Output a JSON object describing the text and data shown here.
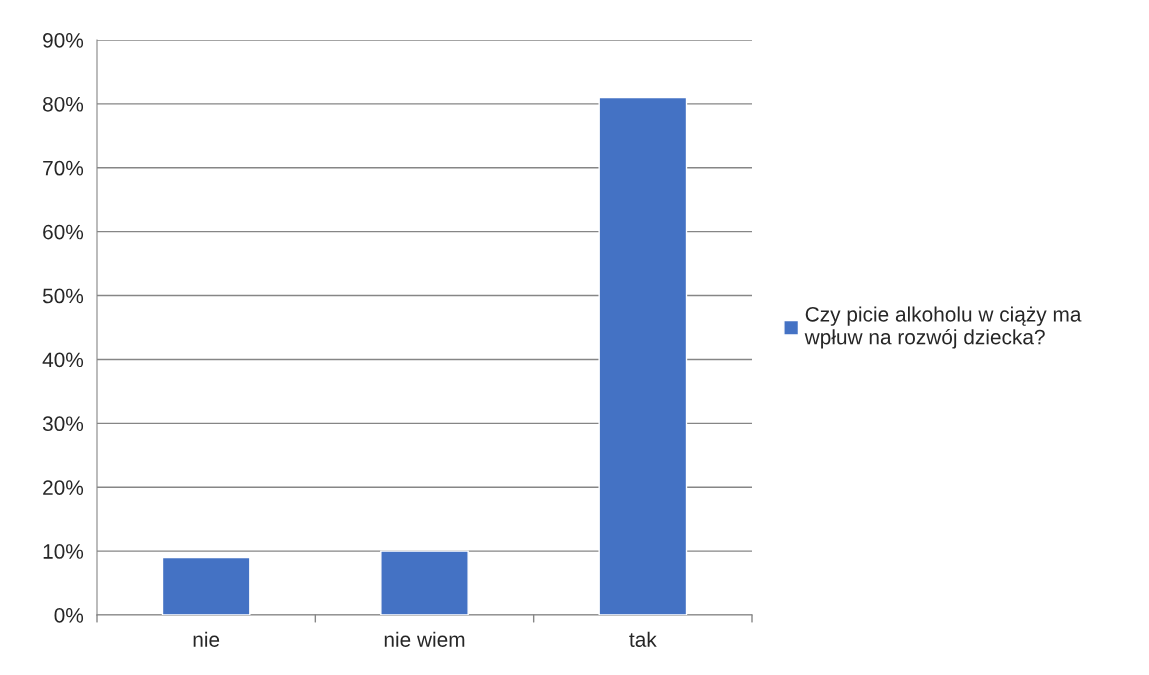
{
  "chart_data": {
    "type": "bar",
    "categories": [
      "nie",
      "nie wiem",
      "tak"
    ],
    "series": [
      {
        "name": "Czy picie alkoholu w ciąży ma wpłuw na rozwój dziecka?",
        "color": "#4472c4",
        "values": [
          9,
          10,
          81
        ]
      }
    ],
    "ylim": [
      0,
      90
    ],
    "yticks": [
      {
        "value": 0,
        "label": "0%"
      },
      {
        "value": 10,
        "label": "10%"
      },
      {
        "value": 20,
        "label": "20%"
      },
      {
        "value": 30,
        "label": "30%"
      },
      {
        "value": 40,
        "label": "40%"
      },
      {
        "value": 50,
        "label": "50%"
      },
      {
        "value": 60,
        "label": "60%"
      },
      {
        "value": 70,
        "label": "70%"
      },
      {
        "value": 80,
        "label": "80%"
      },
      {
        "value": 90,
        "label": "90%"
      }
    ],
    "grid": "y",
    "legend": "right"
  }
}
